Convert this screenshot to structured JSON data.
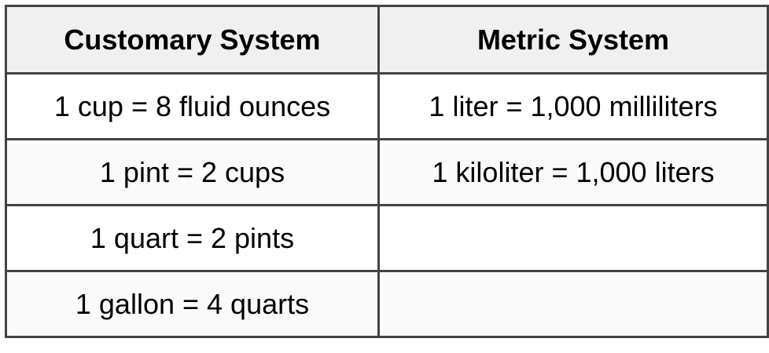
{
  "table": {
    "headers": [
      "Customary System",
      "Metric System"
    ],
    "rows": [
      [
        "1 cup = 8 fluid ounces",
        "1 liter = 1,000 milliliters"
      ],
      [
        "1 pint = 2 cups",
        "1 kiloliter = 1,000 liters"
      ],
      [
        "1 quart = 2 pints",
        ""
      ],
      [
        "1 gallon = 4 quarts",
        ""
      ]
    ]
  },
  "colors": {
    "border": "#434343",
    "header_bg": "#f0f0f0",
    "row_odd_bg": "#ffffff",
    "row_even_bg": "#fafafa"
  }
}
